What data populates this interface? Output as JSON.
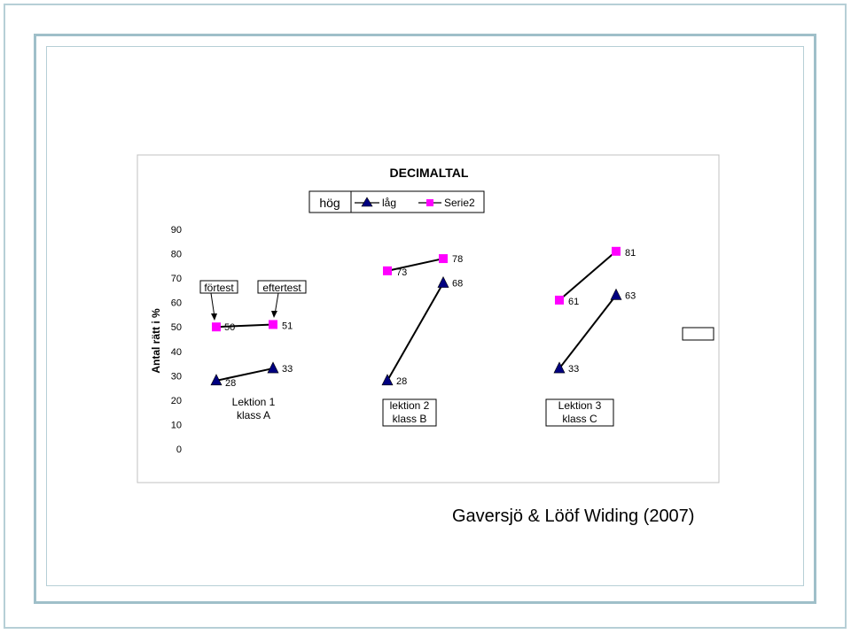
{
  "chart_data": {
    "type": "line",
    "title": "DECIMALTAL",
    "ylabel": "Antal rätt i %",
    "ylim": [
      0,
      90
    ],
    "yticks": [
      0,
      10,
      20,
      30,
      40,
      50,
      60,
      70,
      80,
      90
    ],
    "grid": false,
    "legend_placement": "top",
    "legend": {
      "title": "hög",
      "entries": [
        {
          "label": "låg",
          "marker": "triangle",
          "color": "#000080"
        },
        {
          "label": "Serie2",
          "marker": "square",
          "color": "#ff00ff"
        }
      ]
    },
    "series": [
      {
        "name": "låg",
        "marker": "triangle",
        "color": "#000080",
        "segments": [
          {
            "x": [
              1,
              2
            ],
            "values": [
              28,
              33
            ]
          },
          {
            "x": [
              4,
              5
            ],
            "values": [
              28,
              68
            ]
          },
          {
            "x": [
              7,
              8
            ],
            "values": [
              33,
              63
            ]
          }
        ]
      },
      {
        "name": "Serie2",
        "marker": "square",
        "color": "#ff00ff",
        "segments": [
          {
            "x": [
              1,
              2
            ],
            "values": [
              50,
              51
            ]
          },
          {
            "x": [
              4,
              5
            ],
            "values": [
              73,
              78
            ]
          },
          {
            "x": [
              7,
              8
            ],
            "values": [
              61,
              81
            ]
          }
        ]
      }
    ],
    "annotations": [
      {
        "lines": [
          "förtest"
        ],
        "boxed": true
      },
      {
        "lines": [
          "eftertest"
        ],
        "boxed": true
      },
      {
        "lines": [
          "Lektion 1",
          "klass A"
        ],
        "boxed": false
      },
      {
        "lines": [
          "lektion 2",
          "klass B"
        ],
        "boxed": true
      },
      {
        "lines": [
          "Lektion 3",
          "klass C"
        ],
        "boxed": true
      }
    ]
  },
  "credit": "Gaversjö & Lööf Widing (2007)",
  "colors": {
    "frame": "#9fbfc9",
    "triangle": "#000080",
    "square": "#ff00ff"
  }
}
